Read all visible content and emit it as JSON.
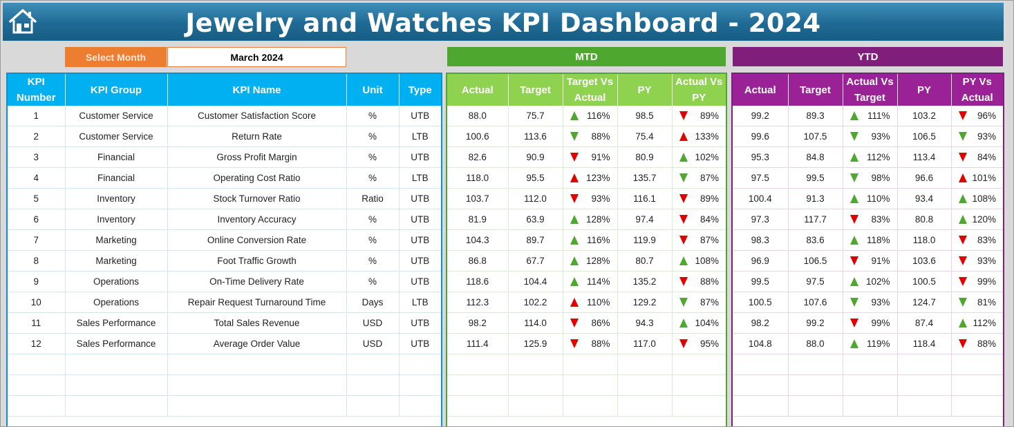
{
  "title": "Jewelry and Watches KPI Dashboard - 2024",
  "colors": {
    "header_blue": "#1f6a94",
    "info": "#00b0f0",
    "mtd": "#4ea72e",
    "mtd_header": "#8fd24f",
    "ytd": "#7f1f7b",
    "month_label": "#ed7d31",
    "up": "#4ea72e",
    "down": "#e00000"
  },
  "icons": {
    "home": "home-icon",
    "indicator_up": "triangle-up",
    "indicator_down": "triangle-down"
  },
  "month_selector": {
    "label": "Select Month",
    "value": "March 2024"
  },
  "sections": {
    "mtd": "MTD",
    "ytd": "YTD"
  },
  "headers": {
    "info": [
      "KPI Number",
      "KPI Group",
      "KPI Name",
      "Unit",
      "Type"
    ],
    "mtd": [
      "Actual",
      "Target",
      "Target Vs Actual",
      "PY",
      "Actual Vs PY"
    ],
    "ytd": [
      "Actual",
      "Target",
      "Actual Vs Target",
      "PY",
      "PY Vs Actual"
    ]
  },
  "rows": [
    {
      "num": "1",
      "group": "Customer Service",
      "name": "Customer Satisfaction Score",
      "unit": "%",
      "type": "UTB",
      "mtd": {
        "actual": "88.0",
        "target": "75.7",
        "tva": "116%",
        "tva_dir": "up-g",
        "py": "98.5",
        "avp": "89%",
        "avp_dir": "dn-r"
      },
      "ytd": {
        "actual": "99.2",
        "target": "89.3",
        "avt": "111%",
        "avt_dir": "up-g",
        "py": "103.2",
        "pva": "96%",
        "pva_dir": "dn-r"
      }
    },
    {
      "num": "2",
      "group": "Customer Service",
      "name": "Return Rate",
      "unit": "%",
      "type": "LTB",
      "mtd": {
        "actual": "100.6",
        "target": "113.6",
        "tva": "88%",
        "tva_dir": "dn-g",
        "py": "75.4",
        "avp": "133%",
        "avp_dir": "up-r"
      },
      "ytd": {
        "actual": "99.6",
        "target": "107.5",
        "avt": "93%",
        "avt_dir": "dn-g",
        "py": "106.5",
        "pva": "93%",
        "pva_dir": "dn-g"
      }
    },
    {
      "num": "3",
      "group": "Financial",
      "name": "Gross Profit Margin",
      "unit": "%",
      "type": "UTB",
      "mtd": {
        "actual": "82.6",
        "target": "90.9",
        "tva": "91%",
        "tva_dir": "dn-r",
        "py": "80.9",
        "avp": "102%",
        "avp_dir": "up-g"
      },
      "ytd": {
        "actual": "95.3",
        "target": "84.8",
        "avt": "112%",
        "avt_dir": "up-g",
        "py": "113.4",
        "pva": "84%",
        "pva_dir": "dn-r"
      }
    },
    {
      "num": "4",
      "group": "Financial",
      "name": "Operating Cost Ratio",
      "unit": "%",
      "type": "LTB",
      "mtd": {
        "actual": "118.0",
        "target": "95.5",
        "tva": "123%",
        "tva_dir": "up-r",
        "py": "135.7",
        "avp": "87%",
        "avp_dir": "dn-g"
      },
      "ytd": {
        "actual": "97.5",
        "target": "99.5",
        "avt": "98%",
        "avt_dir": "dn-g",
        "py": "96.6",
        "pva": "101%",
        "pva_dir": "up-r"
      }
    },
    {
      "num": "5",
      "group": "Inventory",
      "name": "Stock Turnover Ratio",
      "unit": "Ratio",
      "type": "UTB",
      "mtd": {
        "actual": "103.7",
        "target": "112.0",
        "tva": "93%",
        "tva_dir": "dn-r",
        "py": "116.1",
        "avp": "89%",
        "avp_dir": "dn-r"
      },
      "ytd": {
        "actual": "100.4",
        "target": "91.3",
        "avt": "110%",
        "avt_dir": "up-g",
        "py": "93.4",
        "pva": "108%",
        "pva_dir": "up-g"
      }
    },
    {
      "num": "6",
      "group": "Inventory",
      "name": "Inventory Accuracy",
      "unit": "%",
      "type": "UTB",
      "mtd": {
        "actual": "81.9",
        "target": "63.9",
        "tva": "128%",
        "tva_dir": "up-g",
        "py": "97.4",
        "avp": "84%",
        "avp_dir": "dn-r"
      },
      "ytd": {
        "actual": "97.3",
        "target": "117.7",
        "avt": "83%",
        "avt_dir": "dn-r",
        "py": "80.8",
        "pva": "120%",
        "pva_dir": "up-g"
      }
    },
    {
      "num": "7",
      "group": "Marketing",
      "name": "Online Conversion Rate",
      "unit": "%",
      "type": "UTB",
      "mtd": {
        "actual": "104.3",
        "target": "89.7",
        "tva": "116%",
        "tva_dir": "up-g",
        "py": "119.9",
        "avp": "87%",
        "avp_dir": "dn-r"
      },
      "ytd": {
        "actual": "98.3",
        "target": "83.6",
        "avt": "118%",
        "avt_dir": "up-g",
        "py": "118.0",
        "pva": "83%",
        "pva_dir": "dn-r"
      }
    },
    {
      "num": "8",
      "group": "Marketing",
      "name": "Foot Traffic Growth",
      "unit": "%",
      "type": "UTB",
      "mtd": {
        "actual": "86.8",
        "target": "67.7",
        "tva": "128%",
        "tva_dir": "up-g",
        "py": "80.7",
        "avp": "108%",
        "avp_dir": "up-g"
      },
      "ytd": {
        "actual": "96.9",
        "target": "106.5",
        "avt": "91%",
        "avt_dir": "dn-r",
        "py": "103.6",
        "pva": "93%",
        "pva_dir": "dn-r"
      }
    },
    {
      "num": "9",
      "group": "Operations",
      "name": "On-Time Delivery Rate",
      "unit": "%",
      "type": "UTB",
      "mtd": {
        "actual": "118.6",
        "target": "104.4",
        "tva": "114%",
        "tva_dir": "up-g",
        "py": "135.2",
        "avp": "88%",
        "avp_dir": "dn-r"
      },
      "ytd": {
        "actual": "99.5",
        "target": "97.5",
        "avt": "102%",
        "avt_dir": "up-g",
        "py": "100.5",
        "pva": "99%",
        "pva_dir": "dn-r"
      }
    },
    {
      "num": "10",
      "group": "Operations",
      "name": "Repair Request Turnaround Time",
      "unit": "Days",
      "type": "LTB",
      "mtd": {
        "actual": "112.3",
        "target": "102.2",
        "tva": "110%",
        "tva_dir": "up-r",
        "py": "129.2",
        "avp": "87%",
        "avp_dir": "dn-g"
      },
      "ytd": {
        "actual": "100.5",
        "target": "107.6",
        "avt": "93%",
        "avt_dir": "dn-g",
        "py": "124.7",
        "pva": "81%",
        "pva_dir": "dn-g"
      }
    },
    {
      "num": "11",
      "group": "Sales Performance",
      "name": "Total Sales Revenue",
      "unit": "USD",
      "type": "UTB",
      "mtd": {
        "actual": "98.2",
        "target": "114.0",
        "tva": "86%",
        "tva_dir": "dn-r",
        "py": "94.3",
        "avp": "104%",
        "avp_dir": "up-g"
      },
      "ytd": {
        "actual": "98.2",
        "target": "99.2",
        "avt": "99%",
        "avt_dir": "dn-r",
        "py": "87.4",
        "pva": "112%",
        "pva_dir": "up-g"
      }
    },
    {
      "num": "12",
      "group": "Sales Performance",
      "name": "Average Order Value",
      "unit": "USD",
      "type": "UTB",
      "mtd": {
        "actual": "111.4",
        "target": "125.9",
        "tva": "88%",
        "tva_dir": "dn-r",
        "py": "117.0",
        "avp": "95%",
        "avp_dir": "dn-r"
      },
      "ytd": {
        "actual": "104.8",
        "target": "88.0",
        "avt": "119%",
        "avt_dir": "up-g",
        "py": "118.4",
        "pva": "88%",
        "pva_dir": "dn-r"
      }
    }
  ]
}
